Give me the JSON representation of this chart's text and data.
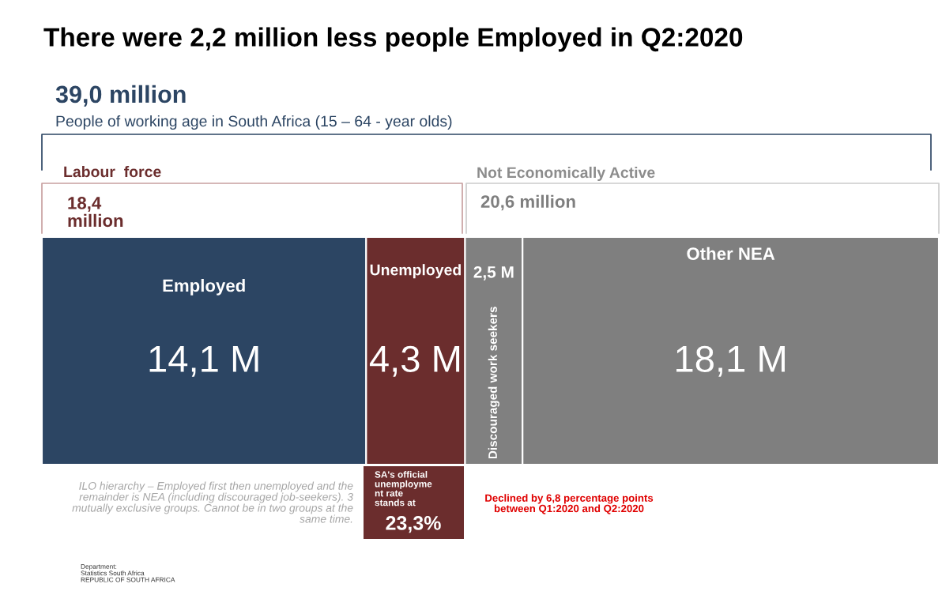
{
  "chart_data": {
    "type": "bar",
    "orientation": "horizontal",
    "stacked": true,
    "title": "There were 2,2 million less people Employed in Q2:2020",
    "categories": [
      null
    ],
    "series": [
      {
        "name": "Employed",
        "color": "#2c4563",
        "values": [
          14.1
        ],
        "value_labels": [
          "14,1 M"
        ]
      },
      {
        "name": "Unemployed",
        "color": "#6b2d2d",
        "values": [
          4.3
        ],
        "value_labels": [
          "4,3 M"
        ]
      },
      {
        "name": "Discouraged work seekers",
        "color": "#808080",
        "values": [
          2.5
        ],
        "value_labels": [
          "2,5 M"
        ]
      },
      {
        "name": "Other NEA",
        "color": "#7f7f7f",
        "values": [
          18.1
        ],
        "value_labels": [
          "18,1 M"
        ]
      }
    ],
    "annotations": [
      "39,0 million",
      "People of working age in South Africa (15 – 64 - year olds)",
      "Labour  force",
      "18,4\nmillion",
      "Not Economically Active",
      "20,6 million",
      "SA's official\nunemployme\nnt rate\nstands at",
      "23,3%",
      "Declined by 6,8 percentage points\nbetween Q1:2020 and Q2:2020",
      "ILO hierarchy – Employed first then unemployed and the\nremainder is NEA (including discouraged job-seekers). 3\nmutually exclusive groups. Cannot be in two groups at the\nsame time.",
      "Department:\nStatistics South Africa\nREPUBLIC OF SOUTH AFRICA"
    ],
    "legend": false
  }
}
